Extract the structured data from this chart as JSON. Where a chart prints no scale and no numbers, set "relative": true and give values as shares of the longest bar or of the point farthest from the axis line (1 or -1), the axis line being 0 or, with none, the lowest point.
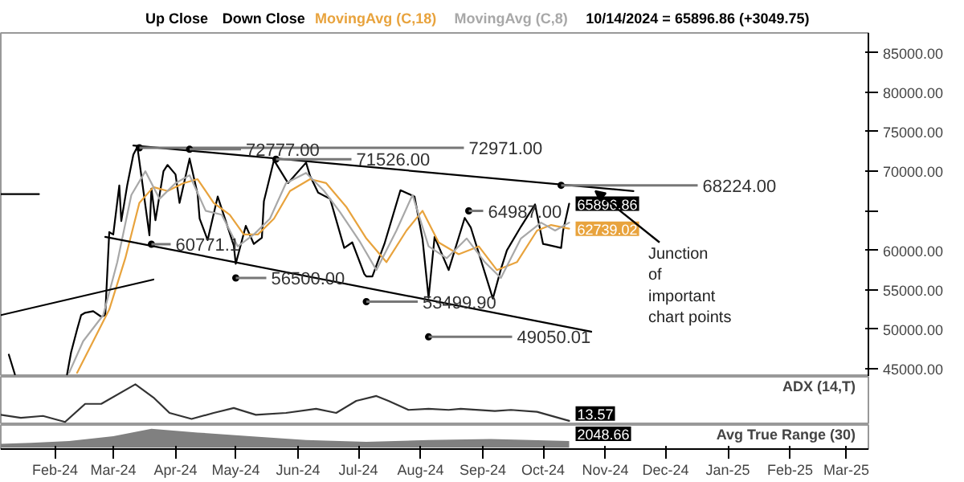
{
  "chart_data": [
    {
      "type": "line",
      "subtitle": "10/14/2024 = 65896.86 (+3049.75)",
      "grid": false,
      "tick_labels": "y",
      "xlim": [
        "2024-01-05",
        "2025-03-12"
      ],
      "ylim": [
        44000,
        87500
      ],
      "yticks": [
        {
          "value": 45000,
          "label": "45000.00"
        },
        {
          "value": 50000,
          "label": "50000.00"
        },
        {
          "value": 55000,
          "label": "55000.00"
        },
        {
          "value": 60000,
          "label": "60000.00"
        },
        {
          "value": 65000,
          "label": null
        },
        {
          "value": 70000,
          "label": "70000.00"
        },
        {
          "value": 75000,
          "label": "75000.00"
        },
        {
          "value": 80000,
          "label": "80000.00"
        },
        {
          "value": 85000,
          "label": "85000.00"
        }
      ],
      "annotations": [
        "Up Close",
        "Down Close",
        {
          "text": "72971.00",
          "x": "2024-03-14",
          "y": 72971
        },
        {
          "text": "72777.00",
          "x": "2024-04-08",
          "y": 72777
        },
        {
          "text": "71526.00",
          "x": "2024-05-21",
          "y": 71526
        },
        {
          "text": "68224.00",
          "x": "2024-10-10",
          "y": 68224
        },
        {
          "text": "64987.00",
          "x": "2024-08-25",
          "y": 64987
        },
        {
          "text": "60771.1",
          "x": "2024-03-20",
          "y": 60771.1
        },
        {
          "text": "56500.00",
          "x": "2024-05-01",
          "y": 56500
        },
        {
          "text": "53499.90",
          "x": "2024-07-05",
          "y": 53499.9
        },
        {
          "text": "49050.01",
          "x": "2024-08-05",
          "y": 49050.01
        },
        {
          "text": "Junction\nof\nimportant\nchart points",
          "x": "2024-10-27",
          "y": 67500
        }
      ],
      "series": [
        {
          "color": "#000000",
          "x": [
            "2024-01-09",
            "2024-01-12",
            "2024-01-14",
            "2024-02-07",
            "2024-02-09",
            "2024-02-12",
            "2024-02-14",
            "2024-02-16",
            "2024-02-20",
            "2024-02-24",
            "2024-02-26",
            "2024-02-28",
            "2024-03-01",
            "2024-03-04",
            "2024-03-05",
            "2024-03-08",
            "2024-03-11",
            "2024-03-13",
            "2024-03-15",
            "2024-03-19",
            "2024-03-20",
            "2024-03-22",
            "2024-03-26",
            "2024-03-28",
            "2024-04-01",
            "2024-04-03",
            "2024-04-08",
            "2024-04-12",
            "2024-04-13",
            "2024-04-17",
            "2024-04-22",
            "2024-04-26",
            "2024-04-30",
            "2024-05-01",
            "2024-05-06",
            "2024-05-10",
            "2024-05-14",
            "2024-05-15",
            "2024-05-20",
            "2024-05-27",
            "2024-06-05",
            "2024-06-07",
            "2024-06-11",
            "2024-06-17",
            "2024-06-24",
            "2024-06-28",
            "2024-07-04",
            "2024-07-05",
            "2024-07-08",
            "2024-07-14",
            "2024-07-22",
            "2024-07-29",
            "2024-08-02",
            "2024-08-05",
            "2024-08-08",
            "2024-08-15",
            "2024-08-23",
            "2024-08-26",
            "2024-09-06",
            "2024-09-10",
            "2024-09-13",
            "2024-09-20",
            "2024-09-27",
            "2024-10-01",
            "2024-10-03",
            "2024-10-10",
            "2024-10-11",
            "2024-10-14"
          ],
          "values": [
            46800,
            44300,
            null,
            44300,
            47100,
            50000,
            51800,
            52100,
            52300,
            51600,
            51800,
            62300,
            62000,
            68200,
            63700,
            68300,
            72100,
            73100,
            69400,
            61900,
            67800,
            63800,
            70000,
            70800,
            69600,
            66000,
            71600,
            67100,
            64000,
            61300,
            66800,
            63700,
            60600,
            58300,
            63100,
            60800,
            61600,
            66200,
            71400,
            68500,
            71100,
            69400,
            67300,
            66500,
            60300,
            61000,
            57000,
            56700,
            56700,
            60800,
            67600,
            66800,
            61400,
            54000,
            61700,
            57500,
            64100,
            62900,
            53900,
            57600,
            60000,
            63000,
            65800,
            60800,
            60700,
            60300,
            62500,
            65896.86
          ],
          "value_labels": [
            null,
            null,
            null,
            null,
            null,
            null,
            null,
            null,
            null,
            null,
            null,
            null,
            null,
            null,
            null,
            null,
            null,
            null,
            null,
            null,
            null,
            null,
            null,
            null,
            null,
            null,
            null,
            null,
            null,
            null,
            null,
            null,
            null,
            null,
            null,
            null,
            null,
            null,
            null,
            null,
            null,
            null,
            null,
            null,
            null,
            null,
            null,
            null,
            null,
            null,
            null,
            null,
            null,
            null,
            null,
            null,
            null,
            null,
            null,
            null,
            null,
            null,
            null,
            null,
            null,
            null,
            null,
            "65896.86"
          ]
        },
        {
          "name": "MovingAvg (C,18)",
          "color": "#e8a33d",
          "x": [
            "2024-02-12",
            "2024-02-20",
            "2024-02-28",
            "2024-03-07",
            "2024-03-14",
            "2024-03-21",
            "2024-03-28",
            "2024-04-05",
            "2024-04-12",
            "2024-04-20",
            "2024-04-28",
            "2024-05-05",
            "2024-05-12",
            "2024-05-20",
            "2024-05-28",
            "2024-06-07",
            "2024-06-15",
            "2024-06-25",
            "2024-07-05",
            "2024-07-15",
            "2024-07-25",
            "2024-08-02",
            "2024-08-10",
            "2024-08-20",
            "2024-08-30",
            "2024-09-08",
            "2024-09-18",
            "2024-09-28",
            "2024-10-05",
            "2024-10-14"
          ],
          "values": [
            44500,
            48500,
            52500,
            59000,
            66000,
            68000,
            67500,
            68500,
            69000,
            66000,
            64500,
            62000,
            62000,
            64000,
            67500,
            69000,
            68500,
            65500,
            61500,
            58500,
            62500,
            65000,
            61000,
            59500,
            60500,
            57500,
            58500,
            62500,
            63200,
            62739.02
          ],
          "value_labels": [
            null,
            null,
            null,
            null,
            null,
            null,
            null,
            null,
            null,
            null,
            null,
            null,
            null,
            null,
            null,
            null,
            null,
            null,
            null,
            null,
            null,
            null,
            null,
            null,
            null,
            null,
            null,
            null,
            null,
            "62739.02"
          ]
        },
        {
          "name": "MovingAvg (C,8)",
          "color": "#a8a8a8",
          "x": [
            "2024-02-08",
            "2024-02-15",
            "2024-02-25",
            "2024-03-03",
            "2024-03-10",
            "2024-03-17",
            "2024-03-24",
            "2024-04-01",
            "2024-04-08",
            "2024-04-16",
            "2024-04-24",
            "2024-05-02",
            "2024-05-10",
            "2024-05-18",
            "2024-05-26",
            "2024-06-05",
            "2024-06-14",
            "2024-06-22",
            "2024-07-02",
            "2024-07-10",
            "2024-07-20",
            "2024-07-28",
            "2024-08-05",
            "2024-08-14",
            "2024-08-24",
            "2024-09-02",
            "2024-09-10",
            "2024-09-20",
            "2024-09-30",
            "2024-10-07",
            "2024-10-14"
          ],
          "values": [
            44500,
            48500,
            51800,
            58500,
            67000,
            70000,
            66500,
            68500,
            69500,
            65000,
            64500,
            60500,
            62000,
            64000,
            68500,
            69800,
            67500,
            64800,
            61000,
            57500,
            62500,
            67000,
            60500,
            59000,
            61500,
            58500,
            56500,
            61500,
            63500,
            62500,
            63500
          ]
        },
        {
          "color": "#000000",
          "x": [
            "2024-03-11",
            "2024-11-15"
          ],
          "values": [
            73250,
            67500
          ]
        },
        {
          "color": "#000000",
          "x": [
            "2024-02-26",
            "2024-10-25"
          ],
          "values": [
            61700,
            49700
          ]
        },
        {
          "color": "#000000",
          "x": [
            "2024-01-05",
            "2024-03-21"
          ],
          "values": [
            51800,
            56300
          ]
        },
        {
          "color": "#000000",
          "x": [
            "2024-01-05",
            "2024-01-24"
          ],
          "values": [
            67100,
            67100
          ]
        }
      ]
    },
    {
      "type": "line",
      "title": "ADX (14,T)",
      "relative": true,
      "tick_labels": false,
      "grid": false,
      "xlim": [
        "2024-01-05",
        "2025-03-12"
      ],
      "x": [
        "2024-01-05",
        "2024-01-15",
        "2024-01-26",
        "2024-02-06",
        "2024-02-16",
        "2024-02-24",
        "2024-03-12",
        "2024-03-21",
        "2024-03-29",
        "2024-04-09",
        "2024-04-20",
        "2024-04-30",
        "2024-05-11",
        "2024-05-26",
        "2024-06-10",
        "2024-06-20",
        "2024-06-30",
        "2024-07-10",
        "2024-07-16",
        "2024-07-26",
        "2024-08-05",
        "2024-08-15",
        "2024-08-21",
        "2024-09-07",
        "2024-09-15",
        "2024-09-28",
        "2024-10-14"
      ],
      "annotations": [
        "13.57"
      ],
      "series": [
        {
          "color": "#333333",
          "values": [
            0.19,
            0.11,
            0.16,
            0,
            0.48,
            0.48,
            1,
            0.65,
            0.24,
            0.08,
            0.24,
            0.37,
            0.19,
            0.24,
            0.35,
            0.24,
            0.56,
            0.69,
            0.56,
            0.32,
            0.35,
            0.32,
            0.35,
            0.29,
            0.32,
            0.27,
            0.03
          ]
        }
      ]
    },
    {
      "type": "area",
      "title": "Avg True Range (30)",
      "relative": true,
      "tick_labels": "x",
      "grid": false,
      "xlim": [
        "2024-01-05",
        "2025-03-12"
      ],
      "xticks": [
        {
          "value": "2024-02-01",
          "label": "Feb-24"
        },
        {
          "value": "2024-03-01",
          "label": "Mar-24"
        },
        {
          "value": "2024-04-01",
          "label": "Apr-24"
        },
        {
          "value": "2024-05-01",
          "label": "May-24"
        },
        {
          "value": "2024-06-01",
          "label": "Jun-24"
        },
        {
          "value": "2024-07-01",
          "label": "Jul-24"
        },
        {
          "value": "2024-08-01",
          "label": "Aug-24"
        },
        {
          "value": "2024-09-01",
          "label": "Sep-24"
        },
        {
          "value": "2024-10-01",
          "label": "Oct-24"
        },
        {
          "value": "2024-11-01",
          "label": "Nov-24"
        },
        {
          "value": "2024-12-01",
          "label": "Dec-24"
        },
        {
          "value": "2025-01-01",
          "label": "Jan-25"
        },
        {
          "value": "2025-02-01",
          "label": "Feb-25"
        },
        {
          "value": "2025-03-01",
          "label": "Mar-25"
        }
      ],
      "x": [
        "2024-01-05",
        "2024-01-20",
        "2024-02-08",
        "2024-03-01",
        "2024-03-20",
        "2024-04-12",
        "2024-05-08",
        "2024-06-05",
        "2024-07-05",
        "2024-08-05",
        "2024-09-05",
        "2024-10-14"
      ],
      "annotations": [
        "2048.66"
      ],
      "series": [
        {
          "color": "#808080",
          "values": [
            0.2,
            0.25,
            0.35,
            0.6,
            1,
            0.8,
            0.6,
            0.4,
            0.3,
            0.4,
            0.45,
            0.35
          ]
        }
      ]
    }
  ]
}
